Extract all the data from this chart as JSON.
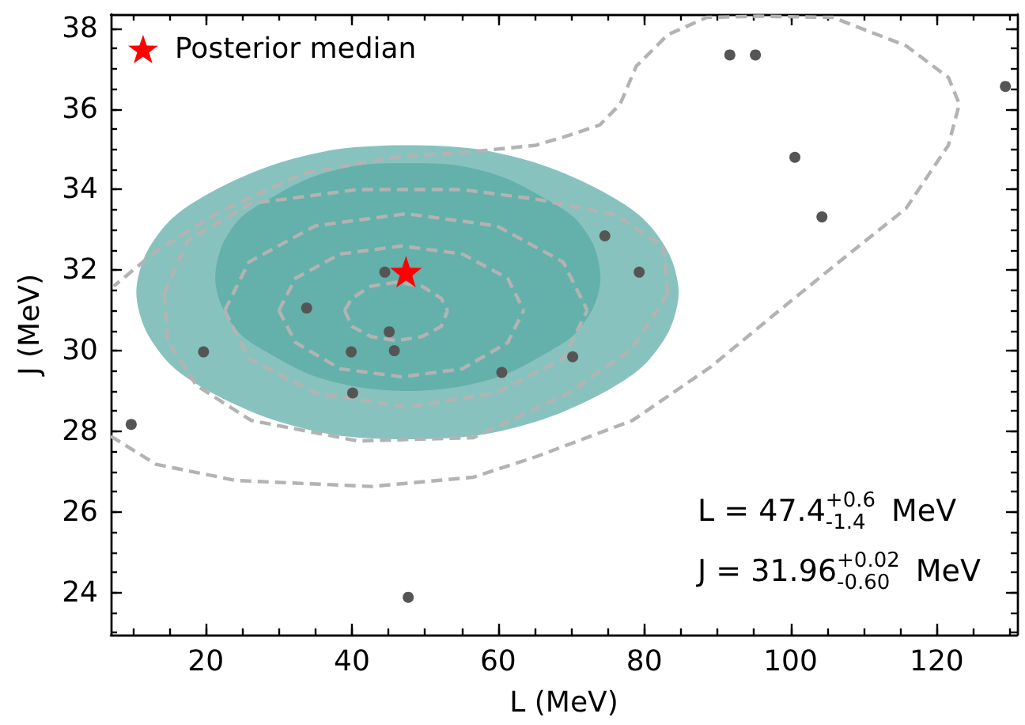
{
  "chart_data": {
    "type": "scatter",
    "xlabel": "L (MeV)",
    "ylabel": "J (MeV)",
    "xlim": [
      7,
      131
    ],
    "ylim": [
      22.95,
      38.35
    ],
    "xticks": [
      20,
      40,
      60,
      80,
      100,
      120
    ],
    "yticks": [
      24,
      26,
      28,
      30,
      32,
      34,
      36,
      38
    ],
    "grid": false,
    "legend": "top left",
    "annotations": [
      "L = 47.4$^{+0.6}$$_{-1.4}$ MeV",
      "J = 31.96$^{+0.02}$$_{-0.60}$ MeV"
    ],
    "series": [
      {
        "type": "area",
        "color": "#88c2be",
        "x": [
          84.7,
          83.4,
          79.7,
          73.8,
          66.2,
          57.2,
          47.6,
          38.0,
          29.0,
          21.4,
          15.5,
          11.8,
          10.5,
          11.8,
          15.5,
          21.4,
          29.0,
          38.0,
          47.6,
          57.2,
          66.2,
          73.8,
          79.7,
          83.4
        ],
        "values": [
          31.45,
          32.4,
          33.3,
          34.0,
          34.6,
          35.0,
          35.1,
          35.0,
          34.6,
          34.0,
          33.3,
          32.4,
          31.45,
          30.5,
          29.6,
          28.9,
          28.3,
          27.9,
          27.8,
          27.9,
          28.3,
          28.9,
          29.6,
          30.5
        ]
      },
      {
        "type": "area",
        "color": "#63b1aa",
        "x": [
          74.0,
          73.1,
          70.4,
          66.2,
          60.8,
          54.4,
          47.6,
          40.8,
          34.4,
          29.0,
          24.8,
          22.2,
          21.3,
          22.2,
          24.8,
          29.0,
          34.4,
          40.8,
          47.6,
          54.4,
          60.8,
          66.2,
          70.4,
          73.1
        ],
        "values": [
          31.8,
          32.6,
          33.3,
          33.8,
          34.3,
          34.6,
          34.65,
          34.6,
          34.3,
          33.8,
          33.3,
          32.6,
          31.8,
          31.1,
          30.4,
          29.9,
          29.4,
          29.1,
          29.0,
          29.1,
          29.4,
          29.9,
          30.4,
          31.1
        ]
      },
      {
        "type": "line",
        "color": "#b3b3b3",
        "line_style": "dashed",
        "marker": "none",
        "x": [
          7.0,
          13.2,
          24.1,
          42.7,
          56.6,
          65.2,
          78.4,
          89.1,
          97.8,
          105.8,
          115.8,
          121.6,
          123.1,
          121.6,
          115.8,
          105.8,
          95.6,
          88.5,
          83.2,
          78.9,
          76.7,
          73.9,
          68.9,
          65.2,
          56.6,
          45.8,
          33.4,
          21.9,
          13.2,
          7.4
        ],
        "values": [
          27.88,
          27.18,
          26.78,
          26.63,
          26.86,
          27.37,
          28.27,
          29.6,
          30.9,
          32.08,
          33.53,
          35.1,
          36.12,
          36.78,
          37.57,
          38.27,
          38.3,
          38.27,
          37.84,
          37.06,
          36.12,
          35.6,
          35.3,
          35.1,
          34.94,
          34.8,
          34.4,
          33.45,
          32.47,
          31.6
        ]
      },
      {
        "type": "line",
        "color": "#b3b3b3",
        "line_style": "dashed",
        "marker": "none",
        "x": [
          14.3,
          17.6,
          26.2,
          40.8,
          55.1,
          65.2,
          76.1,
          82.6,
          83.2
        ],
        "values": [
          31.41,
          32.75,
          33.65,
          34.0,
          34.0,
          33.76,
          33.37,
          32.59,
          31.41
        ]
      },
      {
        "type": "line",
        "color": "#b3b3b3",
        "line_style": "dashed",
        "marker": "none",
        "x": [
          14.3,
          14.8,
          18.7,
          26.2,
          40.8,
          56.6,
          69.6,
          78.3,
          83.2
        ],
        "values": [
          31.41,
          30.24,
          29.14,
          28.27,
          27.76,
          27.84,
          28.94,
          30.04,
          31.41
        ]
      },
      {
        "type": "line",
        "color": "#b3b3b3",
        "line_style": "dashed",
        "marker": "none",
        "x": [
          22.6,
          25.9,
          35.0,
          47.4,
          59.8,
          68.9,
          72.2
        ],
        "values": [
          31.0,
          32.2,
          33.1,
          33.4,
          33.1,
          32.2,
          31.0
        ]
      },
      {
        "type": "line",
        "color": "#b3b3b3",
        "line_style": "dashed",
        "marker": "none",
        "x": [
          22.6,
          25.9,
          35.0,
          47.4,
          59.8,
          68.9,
          72.2
        ],
        "values": [
          31.0,
          29.8,
          28.95,
          28.6,
          28.95,
          29.8,
          31.0
        ]
      },
      {
        "type": "line",
        "color": "#b3b3b3",
        "line_style": "dashed",
        "marker": "none",
        "x": [
          30.0,
          32.3,
          38.4,
          46.8,
          55.1,
          61.3,
          63.5
        ],
        "values": [
          31.0,
          31.8,
          32.4,
          32.6,
          32.4,
          31.8,
          31.0
        ]
      },
      {
        "type": "line",
        "color": "#b3b3b3",
        "line_style": "dashed",
        "marker": "none",
        "x": [
          30.0,
          32.3,
          38.4,
          46.8,
          55.1,
          61.3,
          63.5
        ],
        "values": [
          31.0,
          30.2,
          29.55,
          29.35,
          29.55,
          30.2,
          31.0
        ]
      },
      {
        "type": "line",
        "color": "#b3b3b3",
        "line_style": "dashed",
        "marker": "none",
        "x": [
          39.0,
          40.0,
          42.6,
          46.1,
          49.6,
          52.2,
          53.1
        ],
        "values": [
          31.0,
          31.3,
          31.6,
          31.7,
          31.6,
          31.3,
          31.0
        ]
      },
      {
        "type": "line",
        "color": "#b3b3b3",
        "line_style": "dashed",
        "marker": "none",
        "x": [
          39.0,
          40.0,
          42.6,
          46.1,
          49.6,
          52.2,
          53.1
        ],
        "values": [
          31.0,
          30.6,
          30.35,
          30.25,
          30.35,
          30.6,
          31.0
        ]
      },
      {
        "color": "#555555",
        "marker": "circle",
        "x": [
          9.8,
          19.7,
          39.9,
          33.8,
          40.1,
          44.5,
          45.1,
          45.8,
          47.7,
          60.5,
          70.2,
          74.6,
          79.3,
          91.7,
          95.2,
          100.6,
          104.3,
          129.4
        ],
        "values": [
          28.17,
          29.97,
          29.97,
          31.06,
          28.95,
          31.95,
          30.47,
          30.0,
          23.88,
          29.46,
          29.85,
          32.85,
          31.95,
          37.34,
          37.34,
          34.8,
          33.32,
          36.56
        ]
      },
      {
        "name": "Posterior median",
        "color": "#ff0000",
        "marker": "star",
        "x": [
          47.4
        ],
        "values": [
          31.96
        ]
      }
    ]
  }
}
